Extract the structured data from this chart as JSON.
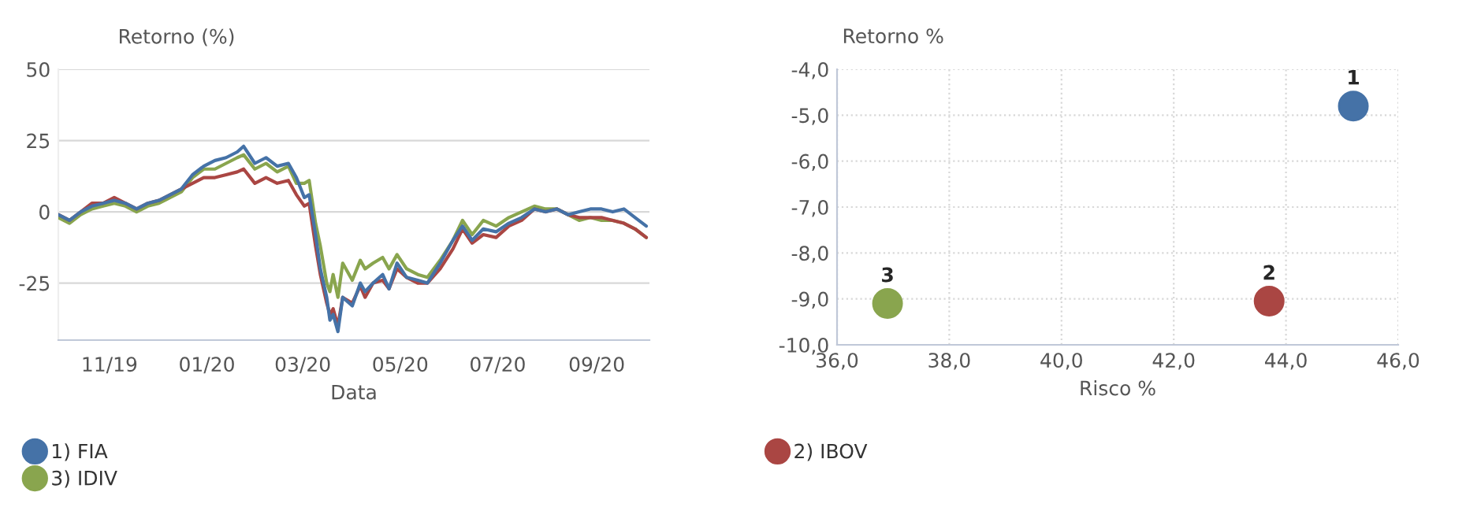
{
  "chart_data": [
    {
      "type": "line",
      "ylabel": "Retorno (%)",
      "xlabel": "Data",
      "x": [
        "2019-09-30",
        "2019-10-07",
        "2019-10-14",
        "2019-10-21",
        "2019-10-28",
        "2019-11-04",
        "2019-11-11",
        "2019-11-18",
        "2019-11-25",
        "2019-12-02",
        "2019-12-09",
        "2019-12-16",
        "2019-12-23",
        "2019-12-30",
        "2020-01-06",
        "2020-01-13",
        "2020-01-20",
        "2020-01-24",
        "2020-01-31",
        "2020-02-07",
        "2020-02-14",
        "2020-02-21",
        "2020-02-26",
        "2020-03-02",
        "2020-03-05",
        "2020-03-09",
        "2020-03-12",
        "2020-03-16",
        "2020-03-18",
        "2020-03-20",
        "2020-03-23",
        "2020-03-26",
        "2020-04-01",
        "2020-04-06",
        "2020-04-09",
        "2020-04-14",
        "2020-04-20",
        "2020-04-24",
        "2020-04-29",
        "2020-05-05",
        "2020-05-12",
        "2020-05-18",
        "2020-05-26",
        "2020-06-03",
        "2020-06-09",
        "2020-06-15",
        "2020-06-22",
        "2020-06-30",
        "2020-07-08",
        "2020-07-16",
        "2020-07-24",
        "2020-07-31",
        "2020-08-07",
        "2020-08-14",
        "2020-08-21",
        "2020-08-28",
        "2020-09-04",
        "2020-09-11",
        "2020-09-18",
        "2020-09-25",
        "2020-10-02"
      ],
      "series": [
        {
          "name": "1) FIA",
          "color": "#4572a7",
          "values": [
            -1,
            -3,
            0,
            2,
            3,
            4,
            3,
            1,
            3,
            4,
            6,
            8,
            13,
            16,
            18,
            19,
            21,
            23,
            17,
            19,
            16,
            17,
            12,
            5,
            6,
            -8,
            -20,
            -30,
            -38,
            -36,
            -42,
            -30,
            -33,
            -25,
            -28,
            -25,
            -22,
            -27,
            -18,
            -23,
            -24,
            -25,
            -18,
            -10,
            -5,
            -10,
            -6,
            -7,
            -4,
            -2,
            1,
            0,
            1,
            -1,
            0,
            1,
            1,
            0,
            1,
            -2,
            -5
          ]
        },
        {
          "name": "2) IBOV",
          "color": "#aa4643",
          "values": [
            -1,
            -3,
            0,
            3,
            3,
            5,
            3,
            1,
            3,
            4,
            6,
            8,
            10,
            12,
            12,
            13,
            14,
            15,
            10,
            12,
            10,
            11,
            6,
            2,
            3,
            -12,
            -22,
            -32,
            -36,
            -34,
            -40,
            -30,
            -32,
            -26,
            -30,
            -25,
            -24,
            -27,
            -20,
            -23,
            -25,
            -25,
            -20,
            -13,
            -6,
            -11,
            -8,
            -9,
            -5,
            -3,
            1,
            0,
            1,
            -1,
            -2,
            -2,
            -2,
            -3,
            -4,
            -6,
            -9
          ]
        },
        {
          "name": "3) IDIV",
          "color": "#89a54e",
          "values": [
            -2,
            -4,
            -1,
            1,
            2,
            3,
            2,
            0,
            2,
            3,
            5,
            7,
            12,
            15,
            15,
            17,
            19,
            20,
            15,
            17,
            14,
            16,
            10,
            10,
            11,
            -4,
            -12,
            -25,
            -28,
            -22,
            -30,
            -18,
            -24,
            -17,
            -20,
            -18,
            -16,
            -20,
            -15,
            -20,
            -22,
            -23,
            -17,
            -10,
            -3,
            -8,
            -3,
            -5,
            -2,
            0,
            2,
            1,
            1,
            -1,
            -3,
            -2,
            -3,
            -3,
            -4,
            -6,
            -9
          ]
        }
      ],
      "xlim": [
        "2019-09-30",
        "2020-10-04"
      ],
      "xticks": [
        {
          "value": "2019-11-01",
          "label": "11/19"
        },
        {
          "value": "2020-01-01",
          "label": "01/20"
        },
        {
          "value": "2020-03-01",
          "label": "03/20"
        },
        {
          "value": "2020-05-01",
          "label": "05/20"
        },
        {
          "value": "2020-07-01",
          "label": "07/20"
        },
        {
          "value": "2020-09-01",
          "label": "09/20"
        }
      ],
      "ylim": [
        -45,
        50
      ],
      "yticks": [
        -25,
        0,
        25,
        50
      ],
      "grid": "y",
      "legend": "bottom",
      "line_style": "solid",
      "marker": "none"
    },
    {
      "type": "scatter",
      "ylabel": "Retorno %",
      "xlabel": "Risco %",
      "series": [
        {
          "color": "#4572a7",
          "x": [
            45.2
          ],
          "values": [
            -4.8
          ]
        },
        {
          "color": "#aa4643",
          "x": [
            43.7
          ],
          "values": [
            -9.05
          ]
        },
        {
          "color": "#89a54e",
          "x": [
            36.9
          ],
          "values": [
            -9.1
          ]
        }
      ],
      "annotations": [
        {
          "text": "1",
          "x": 45.2,
          "y": -4.8
        },
        {
          "text": "2",
          "x": 43.7,
          "y": -9.05
        },
        {
          "text": "3",
          "x": 36.9,
          "y": -9.1
        }
      ],
      "xlim": [
        36,
        46
      ],
      "xticks": [
        {
          "value": 36,
          "label": "36,0"
        },
        {
          "value": 38,
          "label": "38,0"
        },
        {
          "value": 40,
          "label": "40,0"
        },
        {
          "value": 42,
          "label": "42,0"
        },
        {
          "value": 44,
          "label": "44,0"
        },
        {
          "value": 46,
          "label": "46,0"
        }
      ],
      "ylim": [
        -10,
        -4
      ],
      "yticks": [
        {
          "value": -10,
          "label": "-10,0"
        },
        {
          "value": -9,
          "label": "-9,0"
        },
        {
          "value": -8,
          "label": "-8,0"
        },
        {
          "value": -7,
          "label": "-7,0"
        },
        {
          "value": -6,
          "label": "-6,0"
        },
        {
          "value": -5,
          "label": "-5,0"
        },
        {
          "value": -4,
          "label": "-4,0"
        }
      ],
      "grid": true,
      "marker": "circle"
    }
  ]
}
